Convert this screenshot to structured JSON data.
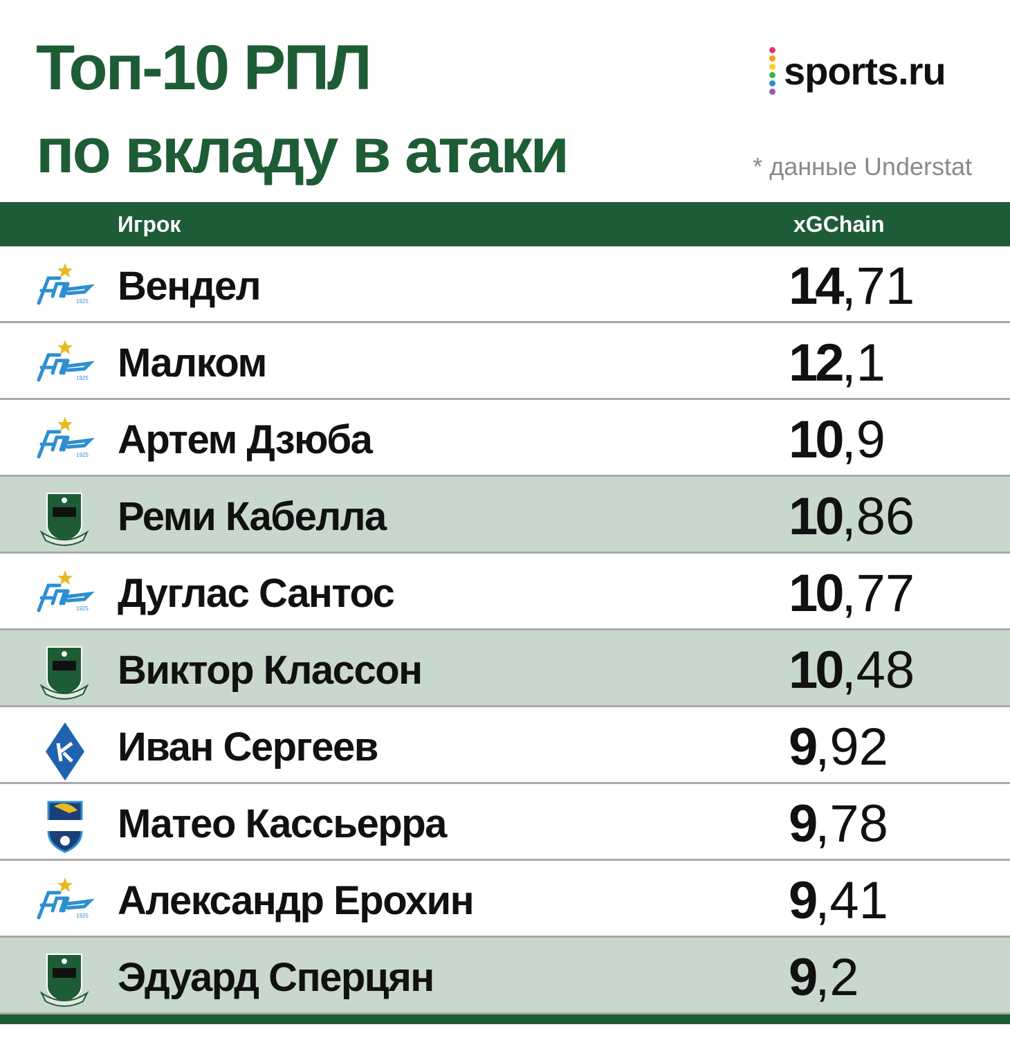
{
  "header": {
    "title_lines": [
      "Топ-10 РПЛ",
      "по вкладу в атаки"
    ],
    "brand": "sports.ru",
    "note": "* данные Understat"
  },
  "table": {
    "columns": [
      "Игрок",
      "xGChain"
    ],
    "rows": [
      [
        "Вендел",
        "14,71"
      ],
      [
        "Малком",
        "12,1"
      ],
      [
        "Артем Дзюба",
        "10,9"
      ],
      [
        "Реми Кабелла",
        "10,86"
      ],
      [
        "Дуглас Сантос",
        "10,77"
      ],
      [
        "Виктор Классон",
        "10,48"
      ],
      [
        "Иван Сергеев",
        "9,92"
      ],
      [
        "Матео Кассьерра",
        "9,78"
      ],
      [
        "Александр Ерохин",
        "9,41"
      ],
      [
        "Эдуард Сперцян",
        "9,2"
      ]
    ]
  }
}
